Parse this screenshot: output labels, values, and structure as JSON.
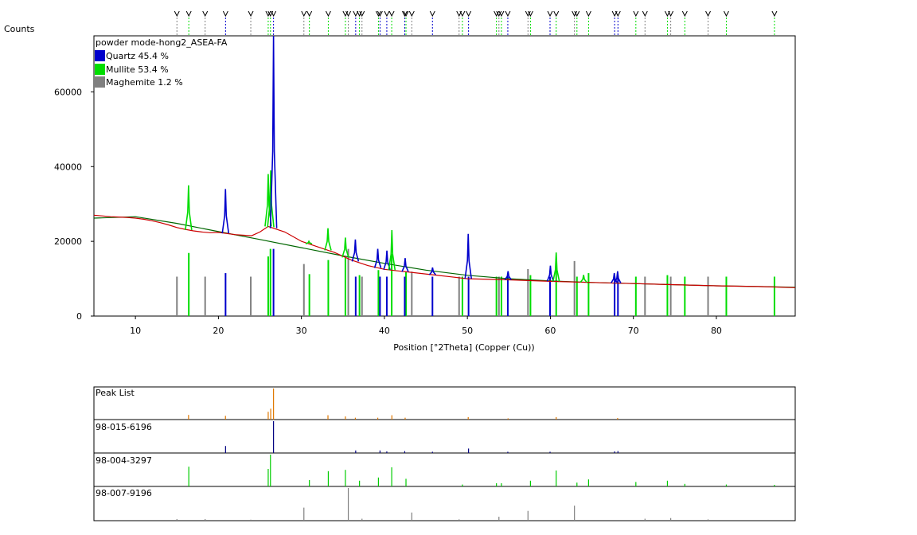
{
  "chart_data": {
    "type": "line",
    "y_axis_label": "Counts",
    "x_axis_label": "Position [°2Theta] (Copper (Cu))",
    "xlim": [
      5,
      89.5
    ],
    "ylim": [
      0,
      75000
    ],
    "x_ticks": [
      10,
      20,
      30,
      40,
      50,
      60,
      70,
      80
    ],
    "y_ticks": [
      0,
      20000,
      40000,
      60000
    ],
    "y_tick_labels": [
      "0",
      "20000",
      "40000",
      "60000"
    ],
    "legend_title": "powder mode-hong2_ASEA-FA",
    "legend_position": "top-left",
    "phases": [
      {
        "label": "Quartz 45.4 %",
        "color": "#0000cc"
      },
      {
        "label": "Mullite 53.4 %",
        "color": "#00dd00"
      },
      {
        "label": "Maghemite 1.2 %",
        "color": "#808080"
      }
    ],
    "observed_pattern": {
      "color": "#cc0000",
      "x": [
        5,
        6,
        7,
        8,
        9,
        10,
        11,
        12,
        13,
        14,
        15,
        16,
        17,
        18,
        19,
        20,
        22,
        24,
        25,
        26,
        28,
        30,
        32,
        34,
        36,
        38,
        40,
        42,
        44,
        46,
        48,
        50,
        55,
        60,
        65,
        70,
        75,
        80,
        85,
        89.5
      ],
      "y": [
        27000,
        26800,
        26600,
        26500,
        26400,
        26200,
        25900,
        25500,
        25000,
        24400,
        23700,
        23200,
        22800,
        22500,
        22300,
        22400,
        21800,
        21500,
        22500,
        24000,
        22500,
        20000,
        18500,
        17000,
        15000,
        13500,
        12500,
        12000,
        11500,
        11000,
        10500,
        10000,
        9700,
        9300,
        9000,
        8700,
        8400,
        8100,
        7900,
        7600
      ]
    },
    "background": {
      "color": "#006600",
      "x": [
        5,
        10,
        15,
        20,
        25,
        30,
        35,
        40,
        45,
        50,
        55,
        60,
        65,
        70,
        75,
        80,
        85,
        89.5
      ],
      "y": [
        26200,
        26600,
        24800,
        22600,
        20500,
        18300,
        16100,
        14100,
        12300,
        10900,
        10000,
        9400,
        9000,
        8700,
        8400,
        8100,
        7900,
        7700
      ]
    },
    "peaks": [
      {
        "x": 16.4,
        "y": 35000,
        "phase": "Mullite"
      },
      {
        "x": 20.85,
        "y": 34000,
        "phase": "Quartz"
      },
      {
        "x": 26.0,
        "y": 38000,
        "phase": "Mullite"
      },
      {
        "x": 26.3,
        "y": 39000,
        "phase": "Mullite"
      },
      {
        "x": 26.64,
        "y": 75000,
        "phase": "Quartz"
      },
      {
        "x": 30.9,
        "y": 20000,
        "phase": "Mullite"
      },
      {
        "x": 33.2,
        "y": 23500,
        "phase": "Mullite"
      },
      {
        "x": 35.3,
        "y": 21000,
        "phase": "Mullite"
      },
      {
        "x": 36.5,
        "y": 20500,
        "phase": "Quartz"
      },
      {
        "x": 39.2,
        "y": 18000,
        "phase": "Quartz"
      },
      {
        "x": 40.3,
        "y": 17500,
        "phase": "Quartz"
      },
      {
        "x": 40.9,
        "y": 23000,
        "phase": "Mullite"
      },
      {
        "x": 42.5,
        "y": 15500,
        "phase": "Quartz"
      },
      {
        "x": 45.8,
        "y": 13000,
        "phase": "Quartz"
      },
      {
        "x": 50.1,
        "y": 22000,
        "phase": "Quartz"
      },
      {
        "x": 54.9,
        "y": 12000,
        "phase": "Quartz"
      },
      {
        "x": 60.0,
        "y": 13500,
        "phase": "Quartz"
      },
      {
        "x": 60.7,
        "y": 17000,
        "phase": "Mullite"
      },
      {
        "x": 64.0,
        "y": 11000,
        "phase": "Mullite"
      },
      {
        "x": 67.7,
        "y": 11500,
        "phase": "Quartz"
      },
      {
        "x": 68.1,
        "y": 12000,
        "phase": "Quartz"
      }
    ],
    "lower_panels": [
      {
        "label": "Peak List",
        "color": "#e07800"
      },
      {
        "label": "98-015-6196",
        "color": "#000080"
      },
      {
        "label": "98-004-3297",
        "color": "#00cc00"
      },
      {
        "label": "98-007-9196",
        "color": "#808080"
      }
    ],
    "reference_sticks": {
      "peak_list": [
        [
          16.4,
          0.15
        ],
        [
          20.85,
          0.12
        ],
        [
          26.0,
          0.25
        ],
        [
          26.3,
          0.35
        ],
        [
          26.64,
          1.0
        ],
        [
          33.2,
          0.14
        ],
        [
          35.3,
          0.1
        ],
        [
          36.5,
          0.06
        ],
        [
          39.2,
          0.06
        ],
        [
          40.9,
          0.14
        ],
        [
          42.5,
          0.06
        ],
        [
          50.1,
          0.08
        ],
        [
          54.9,
          0.04
        ],
        [
          60.7,
          0.08
        ],
        [
          68.1,
          0.05
        ]
      ],
      "quartz": [
        [
          20.86,
          0.22
        ],
        [
          26.64,
          1.0
        ],
        [
          36.54,
          0.08
        ],
        [
          39.47,
          0.08
        ],
        [
          40.29,
          0.05
        ],
        [
          42.45,
          0.06
        ],
        [
          45.79,
          0.04
        ],
        [
          50.14,
          0.14
        ],
        [
          54.87,
          0.04
        ],
        [
          59.96,
          0.04
        ],
        [
          67.74,
          0.05
        ],
        [
          68.14,
          0.06
        ]
      ],
      "mullite": [
        [
          16.43,
          0.62
        ],
        [
          26.0,
          0.55
        ],
        [
          26.27,
          1.0
        ],
        [
          30.96,
          0.2
        ],
        [
          33.24,
          0.48
        ],
        [
          35.3,
          0.52
        ],
        [
          37.0,
          0.18
        ],
        [
          39.28,
          0.28
        ],
        [
          40.88,
          0.6
        ],
        [
          42.6,
          0.24
        ],
        [
          49.4,
          0.06
        ],
        [
          53.5,
          0.1
        ],
        [
          54.1,
          0.1
        ],
        [
          57.6,
          0.18
        ],
        [
          60.7,
          0.5
        ],
        [
          63.2,
          0.12
        ],
        [
          64.6,
          0.22
        ],
        [
          70.3,
          0.14
        ],
        [
          74.1,
          0.18
        ],
        [
          76.2,
          0.08
        ],
        [
          81.2,
          0.06
        ],
        [
          87.0,
          0.05
        ]
      ],
      "maghemite": [
        [
          15.0,
          0.05
        ],
        [
          18.4,
          0.05
        ],
        [
          23.9,
          0.03
        ],
        [
          30.3,
          0.4
        ],
        [
          35.65,
          1.0
        ],
        [
          37.3,
          0.06
        ],
        [
          43.3,
          0.25
        ],
        [
          49.0,
          0.04
        ],
        [
          53.8,
          0.12
        ],
        [
          57.3,
          0.3
        ],
        [
          62.9,
          0.46
        ],
        [
          71.4,
          0.06
        ],
        [
          74.5,
          0.08
        ],
        [
          79.0,
          0.04
        ]
      ]
    }
  }
}
